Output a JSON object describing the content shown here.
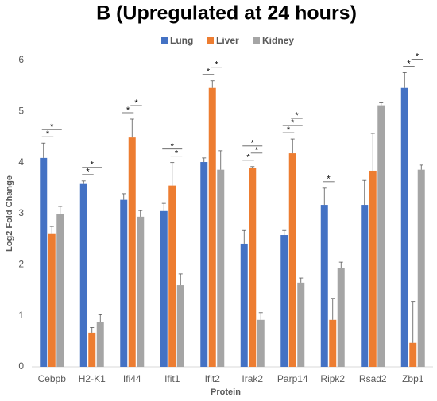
{
  "chart_data": {
    "type": "bar",
    "title": "B (Upregulated at 24 hours)",
    "x_label": "Protein",
    "y_label": "Log2 Fold Change",
    "categories": [
      "Cebpb",
      "H2-K1",
      "Ifi44",
      "Ifit1",
      "Ifit2",
      "Irak2",
      "Parp14",
      "Ripk2",
      "Rsad2",
      "Zbp1"
    ],
    "series": [
      {
        "name": "Lung",
        "color": "#4472c4",
        "values": [
          4.09,
          3.58,
          3.27,
          3.05,
          4.01,
          2.41,
          2.58,
          3.17,
          3.17,
          5.46
        ],
        "errors": [
          0.29,
          0.06,
          0.12,
          0.15,
          0.08,
          0.26,
          0.09,
          0.33,
          0.48,
          0.3
        ]
      },
      {
        "name": "Liver",
        "color": "#ed7d31",
        "values": [
          2.6,
          0.67,
          4.49,
          3.55,
          5.46,
          3.89,
          4.18,
          0.92,
          3.84,
          0.47
        ],
        "errors": [
          0.15,
          0.1,
          0.36,
          0.45,
          0.14,
          0.03,
          0.28,
          0.42,
          0.73,
          0.81
        ]
      },
      {
        "name": "Kidney",
        "color": "#a5a5a5",
        "values": [
          3.0,
          0.88,
          2.94,
          1.6,
          3.86,
          0.92,
          1.65,
          1.93,
          5.12,
          3.86
        ],
        "errors": [
          0.14,
          0.14,
          0.12,
          0.22,
          0.37,
          0.14,
          0.09,
          0.12,
          0.05,
          0.09
        ]
      }
    ],
    "ylim": [
      0,
      6
    ],
    "yticks": [
      0,
      1,
      2,
      3,
      4,
      5,
      6
    ],
    "legend": "top",
    "significance": [
      {
        "category": "Cebpb",
        "from": "Lung",
        "to": "Liver",
        "label": "*"
      },
      {
        "category": "Cebpb",
        "from": "Lung",
        "to": "Kidney",
        "label": "*"
      },
      {
        "category": "H2-K1",
        "from": "Lung",
        "to": "Liver",
        "label": "*"
      },
      {
        "category": "H2-K1",
        "from": "Lung",
        "to": "Kidney",
        "label": "*"
      },
      {
        "category": "Ifi44",
        "from": "Lung",
        "to": "Liver",
        "label": "*"
      },
      {
        "category": "Ifi44",
        "from": "Liver",
        "to": "Kidney",
        "label": "*"
      },
      {
        "category": "Ifit1",
        "from": "Liver",
        "to": "Kidney",
        "label": "*"
      },
      {
        "category": "Ifit1",
        "from": "Lung",
        "to": "Kidney",
        "label": "*"
      },
      {
        "category": "Ifit2",
        "from": "Lung",
        "to": "Liver",
        "label": "*"
      },
      {
        "category": "Ifit2",
        "from": "Liver",
        "to": "Kidney",
        "label": "*"
      },
      {
        "category": "Irak2",
        "from": "Lung",
        "to": "Liver",
        "label": "*"
      },
      {
        "category": "Irak2",
        "from": "Liver",
        "to": "Kidney",
        "label": "*"
      },
      {
        "category": "Irak2",
        "from": "Lung",
        "to": "Kidney",
        "label": "*"
      },
      {
        "category": "Parp14",
        "from": "Lung",
        "to": "Liver",
        "label": "*"
      },
      {
        "category": "Parp14",
        "from": "Lung",
        "to": "Kidney",
        "label": "*"
      },
      {
        "category": "Parp14",
        "from": "Liver",
        "to": "Kidney",
        "label": "*"
      },
      {
        "category": "Ripk2",
        "from": "Lung",
        "to": "Liver",
        "label": "*"
      },
      {
        "category": "Zbp1",
        "from": "Lung",
        "to": "Liver",
        "label": "*"
      },
      {
        "category": "Zbp1",
        "from": "Liver",
        "to": "Kidney",
        "label": "*"
      }
    ]
  }
}
